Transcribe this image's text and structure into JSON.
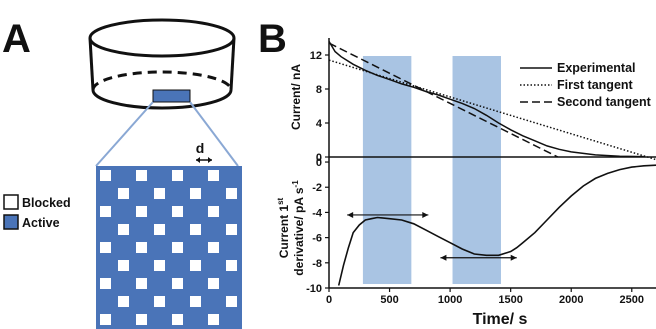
{
  "panels": {
    "a": {
      "letter": "A"
    },
    "b": {
      "letter": "B"
    }
  },
  "schematic": {
    "legend_blocked": "Blocked",
    "legend_active": "Active",
    "spacing_label": "d",
    "colors": {
      "active": "#4a74b8",
      "blocked": "#ffffff",
      "connector": "#8aa8d4"
    }
  },
  "colors": {
    "band": "#a9c4e3",
    "line": "#111111"
  },
  "chart_data": [
    {
      "type": "line",
      "title": "",
      "xlabel": "",
      "ylabel": "Current/ nA",
      "xlim": [
        0,
        2700
      ],
      "ylim": [
        0,
        14
      ],
      "y_ticks": [
        "0",
        "4",
        "8",
        "12"
      ],
      "shaded_regions": [
        [
          280,
          680
        ],
        [
          1020,
          1420
        ]
      ],
      "legend_position": "top-right",
      "series": [
        {
          "name": "Experimental",
          "style": "solid",
          "x": [
            0,
            50,
            100,
            200,
            300,
            400,
            500,
            600,
            700,
            800,
            900,
            1000,
            1100,
            1200,
            1300,
            1400,
            1500,
            1600,
            1700,
            1800,
            1900,
            2000,
            2200,
            2400,
            2600
          ],
          "y": [
            13.6,
            12.4,
            11.8,
            10.9,
            10.2,
            9.6,
            9.1,
            8.6,
            8.2,
            7.7,
            7.3,
            6.8,
            6.3,
            5.7,
            4.9,
            4.0,
            3.2,
            2.5,
            1.9,
            1.3,
            0.9,
            0.6,
            0.25,
            0.1,
            0.05
          ]
        },
        {
          "name": "First tangent",
          "style": "dotted",
          "x": [
            0,
            2700
          ],
          "y": [
            11.4,
            -0.3
          ]
        },
        {
          "name": "Second tangent",
          "style": "dashed",
          "x": [
            0,
            1890
          ],
          "y": [
            13.4,
            0
          ]
        }
      ]
    },
    {
      "type": "line",
      "title": "",
      "xlabel": "Time/ s",
      "ylabel": "Current 1st derivative/ pA s-1",
      "ylabel_line1": "Current 1",
      "ylabel_sup": "st",
      "ylabel_line2": "derivative/ pA s",
      "ylabel_line2_sup": "-1",
      "xlim": [
        0,
        2700
      ],
      "ylim": [
        -10,
        0.4
      ],
      "x_ticks": [
        "0",
        "500",
        "1000",
        "1500",
        "2000",
        "2500"
      ],
      "y_ticks": [
        "0",
        "-2",
        "-4",
        "-6",
        "-8",
        "-10"
      ],
      "shaded_regions": [
        [
          280,
          680
        ],
        [
          1020,
          1420
        ]
      ],
      "arrows": [
        {
          "x": [
            150,
            820
          ],
          "y": -4.2
        },
        {
          "x": [
            920,
            1550
          ],
          "y": -7.6
        }
      ],
      "series": [
        {
          "name": "",
          "style": "solid",
          "x": [
            80,
            120,
            160,
            200,
            250,
            300,
            350,
            400,
            500,
            600,
            700,
            800,
            900,
            1000,
            1100,
            1200,
            1300,
            1400,
            1500,
            1550,
            1600,
            1700,
            1800,
            1900,
            2000,
            2100,
            2200,
            2300,
            2400,
            2500,
            2600,
            2700
          ],
          "y": [
            -9.8,
            -8.2,
            -6.8,
            -5.6,
            -5.0,
            -4.6,
            -4.5,
            -4.4,
            -4.5,
            -4.6,
            -4.9,
            -5.4,
            -5.9,
            -6.4,
            -6.9,
            -7.3,
            -7.4,
            -7.4,
            -7.1,
            -6.8,
            -6.4,
            -5.6,
            -4.6,
            -3.6,
            -2.7,
            -1.9,
            -1.3,
            -0.9,
            -0.6,
            -0.4,
            -0.3,
            -0.25
          ]
        }
      ]
    }
  ]
}
